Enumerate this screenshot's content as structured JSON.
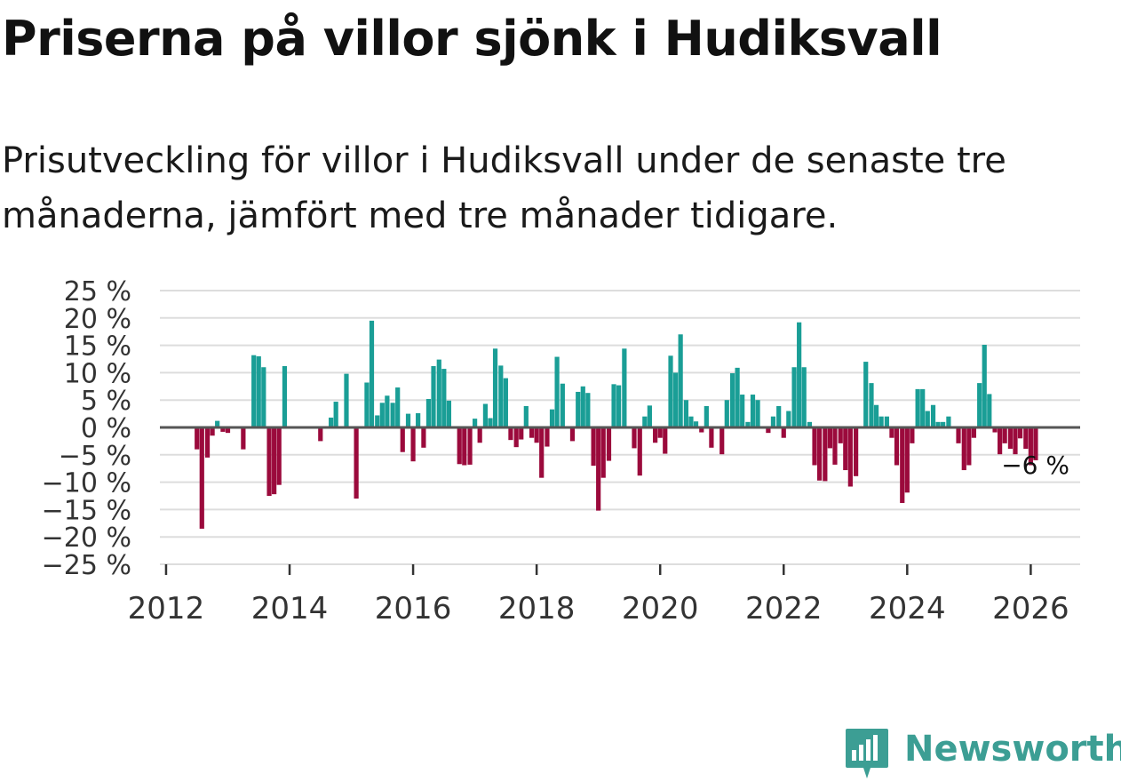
{
  "title": "Priserna på villor sjönk i Hudiksvall",
  "subtitle": "Prisutveckling för villor i Hudiksvall under de senaste tre månaderna, jämfört med tre månader tidigare.",
  "colors": {
    "positive": "#1a9e96",
    "negative": "#9b0a3c",
    "grid": "#dddddd",
    "zero": "#555555",
    "logo": "#3c9e94"
  },
  "logo": {
    "text": "Newsworthy",
    "icon": "chart-bubble-icon"
  },
  "chart_data": {
    "type": "bar",
    "title": "",
    "xlabel": "",
    "ylabel": "",
    "ylim": [
      -25,
      25
    ],
    "xlim": [
      2011.9,
      2026.8
    ],
    "y_ticks": [
      25,
      20,
      15,
      10,
      5,
      0,
      -5,
      -10,
      -15,
      -20,
      -25
    ],
    "y_tick_labels": [
      "25 %",
      "20 %",
      "15 %",
      "10 %",
      "5 %",
      "0 %",
      "−5 %",
      "−10 %",
      "−15 %",
      "−20 %",
      "−25 %"
    ],
    "x_ticks": [
      2012,
      2014,
      2016,
      2018,
      2020,
      2022,
      2024,
      2026
    ],
    "x_tick_labels": [
      "2012",
      "2014",
      "2016",
      "2018",
      "2020",
      "2022",
      "2024",
      "2026"
    ],
    "annotation": {
      "label": "−6 %",
      "x": 2026.08,
      "y": -6
    },
    "series": [
      {
        "name": "Prisutveckling",
        "points": [
          {
            "x": 2012.5,
            "y": -4
          },
          {
            "x": 2012.58,
            "y": -18.5
          },
          {
            "x": 2012.67,
            "y": -5.5
          },
          {
            "x": 2012.75,
            "y": -1.5
          },
          {
            "x": 2012.83,
            "y": 1.2
          },
          {
            "x": 2012.92,
            "y": -0.8
          },
          {
            "x": 2013.0,
            "y": -1
          },
          {
            "x": 2013.25,
            "y": -4
          },
          {
            "x": 2013.42,
            "y": 13.2
          },
          {
            "x": 2013.5,
            "y": 13
          },
          {
            "x": 2013.58,
            "y": 11
          },
          {
            "x": 2013.67,
            "y": -12.5
          },
          {
            "x": 2013.75,
            "y": -12.2
          },
          {
            "x": 2013.83,
            "y": -10.5
          },
          {
            "x": 2013.92,
            "y": 11.2
          },
          {
            "x": 2014.5,
            "y": -2.5
          },
          {
            "x": 2014.67,
            "y": 1.8
          },
          {
            "x": 2014.75,
            "y": 4.7
          },
          {
            "x": 2014.92,
            "y": 9.8
          },
          {
            "x": 2015.08,
            "y": -13
          },
          {
            "x": 2015.25,
            "y": 8.2
          },
          {
            "x": 2015.33,
            "y": 19.5
          },
          {
            "x": 2015.42,
            "y": 2.2
          },
          {
            "x": 2015.5,
            "y": 4.5
          },
          {
            "x": 2015.58,
            "y": 5.8
          },
          {
            "x": 2015.67,
            "y": 4.5
          },
          {
            "x": 2015.75,
            "y": 7.3
          },
          {
            "x": 2015.83,
            "y": -4.5
          },
          {
            "x": 2015.92,
            "y": 2.5
          },
          {
            "x": 2016.0,
            "y": -6.2
          },
          {
            "x": 2016.08,
            "y": 2.6
          },
          {
            "x": 2016.17,
            "y": -3.7
          },
          {
            "x": 2016.25,
            "y": 5.2
          },
          {
            "x": 2016.33,
            "y": 11.2
          },
          {
            "x": 2016.42,
            "y": 12.4
          },
          {
            "x": 2016.5,
            "y": 10.7
          },
          {
            "x": 2016.58,
            "y": 4.9
          },
          {
            "x": 2016.75,
            "y": -6.7
          },
          {
            "x": 2016.83,
            "y": -6.9
          },
          {
            "x": 2016.92,
            "y": -6.8
          },
          {
            "x": 2017.0,
            "y": 1.6
          },
          {
            "x": 2017.08,
            "y": -2.8
          },
          {
            "x": 2017.17,
            "y": 4.3
          },
          {
            "x": 2017.25,
            "y": 1.7
          },
          {
            "x": 2017.33,
            "y": 14.4
          },
          {
            "x": 2017.42,
            "y": 11.3
          },
          {
            "x": 2017.5,
            "y": 9
          },
          {
            "x": 2017.58,
            "y": -2.3
          },
          {
            "x": 2017.67,
            "y": -3.6
          },
          {
            "x": 2017.75,
            "y": -2.2
          },
          {
            "x": 2017.83,
            "y": 3.9
          },
          {
            "x": 2017.92,
            "y": -1.9
          },
          {
            "x": 2018.0,
            "y": -2.8
          },
          {
            "x": 2018.08,
            "y": -9.2
          },
          {
            "x": 2018.17,
            "y": -3.5
          },
          {
            "x": 2018.25,
            "y": 3.3
          },
          {
            "x": 2018.33,
            "y": 12.9
          },
          {
            "x": 2018.42,
            "y": 8
          },
          {
            "x": 2018.58,
            "y": -2.5
          },
          {
            "x": 2018.67,
            "y": 6.5
          },
          {
            "x": 2018.75,
            "y": 7.5
          },
          {
            "x": 2018.83,
            "y": 6.3
          },
          {
            "x": 2018.92,
            "y": -7
          },
          {
            "x": 2019.0,
            "y": -15.2
          },
          {
            "x": 2019.08,
            "y": -9.2
          },
          {
            "x": 2019.17,
            "y": -6.1
          },
          {
            "x": 2019.25,
            "y": 7.9
          },
          {
            "x": 2019.33,
            "y": 7.7
          },
          {
            "x": 2019.42,
            "y": 14.4
          },
          {
            "x": 2019.58,
            "y": -3.8
          },
          {
            "x": 2019.67,
            "y": -8.8
          },
          {
            "x": 2019.75,
            "y": 2
          },
          {
            "x": 2019.83,
            "y": 4
          },
          {
            "x": 2019.92,
            "y": -2.8
          },
          {
            "x": 2020.0,
            "y": -1.9
          },
          {
            "x": 2020.08,
            "y": -4.8
          },
          {
            "x": 2020.17,
            "y": 13.1
          },
          {
            "x": 2020.25,
            "y": 10
          },
          {
            "x": 2020.33,
            "y": 17
          },
          {
            "x": 2020.42,
            "y": 5
          },
          {
            "x": 2020.5,
            "y": 2
          },
          {
            "x": 2020.58,
            "y": 1.1
          },
          {
            "x": 2020.67,
            "y": -0.9
          },
          {
            "x": 2020.75,
            "y": 3.9
          },
          {
            "x": 2020.83,
            "y": -3.7
          },
          {
            "x": 2021.0,
            "y": -4.9
          },
          {
            "x": 2021.08,
            "y": 5
          },
          {
            "x": 2021.17,
            "y": 9.9
          },
          {
            "x": 2021.25,
            "y": 10.9
          },
          {
            "x": 2021.33,
            "y": 6
          },
          {
            "x": 2021.42,
            "y": 1
          },
          {
            "x": 2021.5,
            "y": 6
          },
          {
            "x": 2021.58,
            "y": 5
          },
          {
            "x": 2021.75,
            "y": -1
          },
          {
            "x": 2021.83,
            "y": 2
          },
          {
            "x": 2021.92,
            "y": 3.9
          },
          {
            "x": 2022.0,
            "y": -1.9
          },
          {
            "x": 2022.08,
            "y": 3
          },
          {
            "x": 2022.17,
            "y": 11
          },
          {
            "x": 2022.25,
            "y": 19.2
          },
          {
            "x": 2022.33,
            "y": 11
          },
          {
            "x": 2022.42,
            "y": 1
          },
          {
            "x": 2022.5,
            "y": -6.9
          },
          {
            "x": 2022.58,
            "y": -9.7
          },
          {
            "x": 2022.67,
            "y": -9.8
          },
          {
            "x": 2022.75,
            "y": -3.8
          },
          {
            "x": 2022.83,
            "y": -6.8
          },
          {
            "x": 2022.92,
            "y": -2.9
          },
          {
            "x": 2023.0,
            "y": -7.8
          },
          {
            "x": 2023.08,
            "y": -10.8
          },
          {
            "x": 2023.17,
            "y": -8.9
          },
          {
            "x": 2023.33,
            "y": 12
          },
          {
            "x": 2023.42,
            "y": 8.1
          },
          {
            "x": 2023.5,
            "y": 4.1
          },
          {
            "x": 2023.58,
            "y": 2
          },
          {
            "x": 2023.67,
            "y": 2
          },
          {
            "x": 2023.75,
            "y": -1.9
          },
          {
            "x": 2023.83,
            "y": -6.9
          },
          {
            "x": 2023.92,
            "y": -13.8
          },
          {
            "x": 2024.0,
            "y": -11.9
          },
          {
            "x": 2024.08,
            "y": -2.9
          },
          {
            "x": 2024.17,
            "y": 7
          },
          {
            "x": 2024.25,
            "y": 7
          },
          {
            "x": 2024.33,
            "y": 3
          },
          {
            "x": 2024.42,
            "y": 4.1
          },
          {
            "x": 2024.5,
            "y": 1
          },
          {
            "x": 2024.58,
            "y": 1
          },
          {
            "x": 2024.67,
            "y": 2
          },
          {
            "x": 2024.83,
            "y": -2.9
          },
          {
            "x": 2024.92,
            "y": -7.8
          },
          {
            "x": 2025.0,
            "y": -6.9
          },
          {
            "x": 2025.08,
            "y": -1.9
          },
          {
            "x": 2025.17,
            "y": 8.1
          },
          {
            "x": 2025.25,
            "y": 15.1
          },
          {
            "x": 2025.33,
            "y": 6.1
          },
          {
            "x": 2025.42,
            "y": -0.9
          },
          {
            "x": 2025.5,
            "y": -4.9
          },
          {
            "x": 2025.58,
            "y": -2.9
          },
          {
            "x": 2025.67,
            "y": -3.9
          },
          {
            "x": 2025.75,
            "y": -4.9
          },
          {
            "x": 2025.83,
            "y": -2
          },
          {
            "x": 2025.92,
            "y": -3.9
          },
          {
            "x": 2026.0,
            "y": -6.9
          },
          {
            "x": 2026.08,
            "y": -6
          }
        ]
      }
    ]
  }
}
